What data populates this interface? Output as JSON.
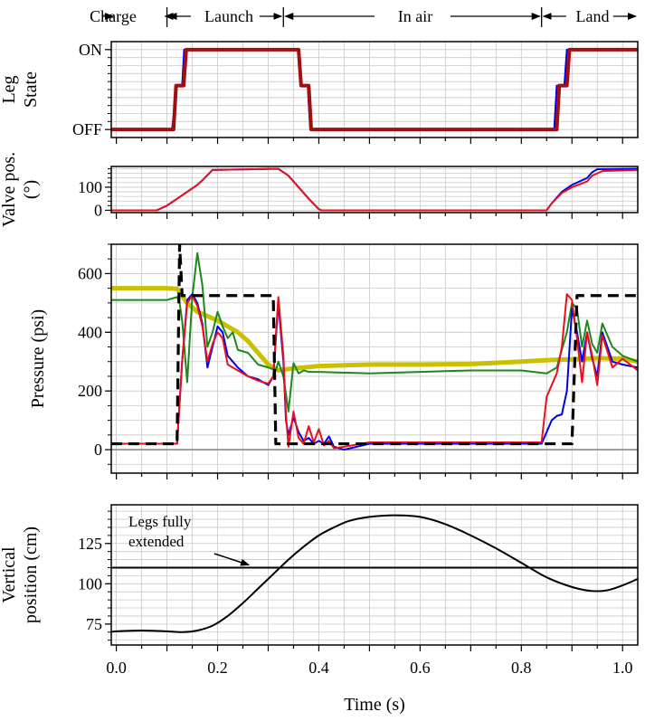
{
  "phases": [
    "Charge",
    "Launch",
    "In air",
    "Land"
  ],
  "phase_bounds": [
    -0.01,
    0.1,
    0.33,
    0.84,
    1.03
  ],
  "colors": {
    "blue": "#0000e6",
    "red": "#e8101c",
    "green": "#1a8a1a",
    "olive": "#c8c000",
    "command": "#000000",
    "legstate": "#a01010",
    "grid": "#c8c8c8"
  },
  "chart_data": [
    {
      "type": "line",
      "ylabel": [
        "Leg",
        "State"
      ],
      "ytick_labels": [
        "OFF",
        "ON"
      ],
      "xlim": [
        -0.01,
        1.03
      ],
      "ylim": [
        -0.1,
        1.1
      ],
      "series": [
        {
          "color_key": "blue",
          "x": [
            -0.01,
            0.11,
            0.12,
            0.13,
            0.134,
            0.36,
            0.365,
            0.378,
            0.383,
            0.865,
            0.87,
            0.885,
            0.89,
            1.03
          ],
          "y": [
            0,
            0,
            0.55,
            0.55,
            1,
            1,
            0.55,
            0.55,
            0,
            0,
            0.55,
            0.55,
            1,
            1
          ]
        },
        {
          "color_key": "legstate",
          "x": [
            -0.01,
            0.113,
            0.118,
            0.133,
            0.138,
            0.36,
            0.365,
            0.38,
            0.385,
            0.87,
            0.875,
            0.89,
            0.895,
            1.03
          ],
          "y": [
            0,
            0,
            0.55,
            0.55,
            1,
            1,
            0.55,
            0.55,
            0,
            0,
            0.55,
            0.55,
            1,
            1
          ]
        }
      ]
    },
    {
      "type": "line",
      "ylabel": [
        "Valve pos.",
        "(°)"
      ],
      "yticks": [
        0,
        100
      ],
      "xlim": [
        -0.01,
        1.03
      ],
      "ylim": [
        -10,
        190
      ],
      "series": [
        {
          "color_key": "blue",
          "x": [
            -0.01,
            0.08,
            0.1,
            0.12,
            0.14,
            0.16,
            0.17,
            0.19,
            0.32,
            0.34,
            0.36,
            0.38,
            0.4,
            0.405,
            0.85,
            0.86,
            0.88,
            0.9,
            0.93,
            0.94,
            0.95,
            1.03
          ],
          "y": [
            0,
            0,
            20,
            50,
            80,
            110,
            130,
            175,
            180,
            150,
            100,
            50,
            5,
            0,
            0,
            30,
            80,
            110,
            140,
            165,
            178,
            180
          ]
        },
        {
          "color_key": "red",
          "x": [
            -0.01,
            0.08,
            0.1,
            0.12,
            0.14,
            0.16,
            0.17,
            0.19,
            0.32,
            0.34,
            0.36,
            0.38,
            0.4,
            0.405,
            0.85,
            0.86,
            0.88,
            0.9,
            0.93,
            0.94,
            0.96,
            1.03
          ],
          "y": [
            0,
            0,
            20,
            50,
            80,
            110,
            130,
            175,
            180,
            150,
            100,
            50,
            5,
            0,
            0,
            30,
            75,
            100,
            125,
            150,
            170,
            175
          ]
        }
      ]
    },
    {
      "type": "line",
      "ylabel": [
        "Pressure (psi)"
      ],
      "yticks": [
        0,
        200,
        400,
        600
      ],
      "xlim": [
        -0.01,
        1.03
      ],
      "ylim": [
        -80,
        700
      ],
      "series": [
        {
          "color_key": "olive",
          "x": [
            -0.01,
            0.1,
            0.12,
            0.14,
            0.16,
            0.18,
            0.2,
            0.22,
            0.24,
            0.26,
            0.28,
            0.3,
            0.32,
            0.34,
            0.4,
            0.5,
            0.6,
            0.7,
            0.8,
            0.85,
            0.9,
            0.95,
            1.0,
            1.03
          ],
          "y": [
            550,
            550,
            548,
            500,
            470,
            455,
            440,
            420,
            400,
            370,
            330,
            290,
            270,
            275,
            285,
            290,
            290,
            292,
            300,
            305,
            308,
            312,
            310,
            300
          ]
        },
        {
          "color_key": "green",
          "x": [
            -0.01,
            0.1,
            0.12,
            0.125,
            0.13,
            0.14,
            0.15,
            0.16,
            0.17,
            0.18,
            0.19,
            0.2,
            0.21,
            0.22,
            0.23,
            0.24,
            0.26,
            0.28,
            0.3,
            0.315,
            0.32,
            0.33,
            0.34,
            0.35,
            0.36,
            0.37,
            0.38,
            0.4,
            0.5,
            0.6,
            0.7,
            0.8,
            0.85,
            0.87,
            0.88,
            0.89,
            0.9,
            0.91,
            0.92,
            0.93,
            0.94,
            0.95,
            0.96,
            0.98,
            1.0,
            1.03
          ],
          "y": [
            510,
            510,
            520,
            500,
            440,
            230,
            520,
            670,
            560,
            350,
            400,
            470,
            420,
            380,
            400,
            340,
            330,
            290,
            280,
            270,
            300,
            250,
            130,
            295,
            260,
            270,
            265,
            265,
            260,
            265,
            270,
            270,
            260,
            280,
            340,
            400,
            500,
            480,
            350,
            440,
            360,
            330,
            430,
            350,
            320,
            300
          ]
        },
        {
          "color_key": "blue",
          "x": [
            -0.01,
            0.12,
            0.13,
            0.14,
            0.15,
            0.16,
            0.17,
            0.18,
            0.19,
            0.2,
            0.21,
            0.22,
            0.24,
            0.26,
            0.28,
            0.3,
            0.31,
            0.32,
            0.33,
            0.335,
            0.34,
            0.35,
            0.36,
            0.37,
            0.38,
            0.39,
            0.4,
            0.41,
            0.42,
            0.43,
            0.45,
            0.5,
            0.6,
            0.7,
            0.8,
            0.84,
            0.85,
            0.86,
            0.87,
            0.88,
            0.89,
            0.9,
            0.91,
            0.92,
            0.93,
            0.94,
            0.95,
            0.96,
            0.98,
            1.0,
            1.03
          ],
          "y": [
            20,
            20,
            300,
            510,
            530,
            500,
            430,
            280,
            350,
            420,
            400,
            320,
            280,
            250,
            240,
            220,
            250,
            500,
            300,
            100,
            50,
            110,
            60,
            30,
            40,
            20,
            30,
            20,
            45,
            10,
            0,
            20,
            20,
            20,
            20,
            20,
            60,
            100,
            115,
            120,
            200,
            480,
            400,
            300,
            400,
            310,
            250,
            400,
            300,
            290,
            280
          ]
        },
        {
          "color_key": "red",
          "x": [
            -0.01,
            0.12,
            0.13,
            0.14,
            0.15,
            0.16,
            0.17,
            0.18,
            0.19,
            0.2,
            0.21,
            0.22,
            0.24,
            0.26,
            0.28,
            0.3,
            0.31,
            0.32,
            0.33,
            0.335,
            0.34,
            0.35,
            0.36,
            0.37,
            0.38,
            0.39,
            0.4,
            0.41,
            0.42,
            0.43,
            0.45,
            0.5,
            0.6,
            0.7,
            0.8,
            0.84,
            0.85,
            0.86,
            0.87,
            0.88,
            0.89,
            0.9,
            0.91,
            0.92,
            0.93,
            0.94,
            0.95,
            0.96,
            0.98,
            1.0,
            1.03
          ],
          "y": [
            20,
            20,
            300,
            500,
            525,
            490,
            420,
            300,
            360,
            400,
            380,
            290,
            270,
            250,
            235,
            225,
            250,
            520,
            320,
            120,
            10,
            130,
            40,
            20,
            80,
            25,
            70,
            15,
            30,
            5,
            10,
            25,
            25,
            25,
            25,
            25,
            180,
            220,
            260,
            350,
            530,
            510,
            380,
            230,
            400,
            320,
            220,
            390,
            280,
            310,
            270
          ]
        },
        {
          "color_key": "command",
          "dashed": true,
          "x": [
            -0.01,
            0.12,
            0.125,
            0.13,
            0.14,
            0.31,
            0.315,
            0.9,
            0.91,
            1.03
          ],
          "y": [
            20,
            20,
            700,
            525,
            525,
            525,
            20,
            20,
            525,
            525
          ]
        }
      ]
    },
    {
      "type": "line",
      "ylabel": [
        "Vertical",
        "position (cm)"
      ],
      "yticks": [
        75,
        100,
        125
      ],
      "xlabel": "Time (s)",
      "xticks": [
        0.0,
        0.2,
        0.4,
        0.6,
        0.8,
        1.0
      ],
      "xtick_labels": [
        "0.0",
        "0.2",
        "0.4",
        "0.6",
        "0.8",
        "1.0"
      ],
      "xlim": [
        -0.01,
        1.03
      ],
      "ylim": [
        62,
        149
      ],
      "annotation": {
        "text": [
          "Legs fully",
          "extended"
        ],
        "target": [
          0.235,
          110
        ]
      },
      "hline": 110,
      "series": [
        {
          "color_key": "command",
          "x": [
            -0.01,
            0.0,
            0.05,
            0.1,
            0.13,
            0.16,
            0.19,
            0.22,
            0.25,
            0.28,
            0.31,
            0.34,
            0.37,
            0.4,
            0.43,
            0.46,
            0.5,
            0.55,
            0.6,
            0.65,
            0.7,
            0.75,
            0.8,
            0.85,
            0.9,
            0.94,
            0.97,
            1.0,
            1.03
          ],
          "y": [
            70,
            70.5,
            71,
            70.5,
            70,
            71,
            74,
            80,
            88,
            97,
            106,
            115,
            123,
            130,
            135,
            139,
            141.5,
            142.5,
            141.5,
            137,
            130,
            122,
            113,
            104,
            98,
            95.5,
            96,
            99,
            103
          ]
        }
      ]
    }
  ]
}
